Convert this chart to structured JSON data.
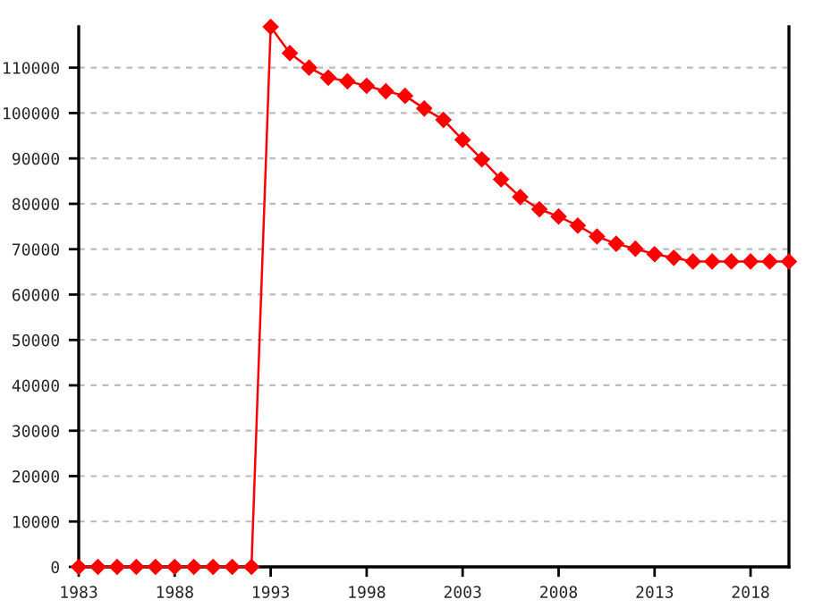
{
  "chart_data": {
    "type": "line",
    "x": [
      1983,
      1984,
      1985,
      1986,
      1987,
      1988,
      1989,
      1990,
      1991,
      1992,
      1993,
      1994,
      1995,
      1996,
      1997,
      1998,
      1999,
      2000,
      2001,
      2002,
      2003,
      2004,
      2005,
      2006,
      2007,
      2008,
      2009,
      2010,
      2011,
      2012,
      2013,
      2014,
      2015,
      2016,
      2017,
      2018,
      2019,
      2020
    ],
    "series": [
      {
        "color": "#ff0000",
        "values": [
          0,
          0,
          0,
          0,
          0,
          0,
          0,
          0,
          0,
          0,
          119000,
          113200,
          110000,
          107800,
          107000,
          106000,
          104800,
          103800,
          101000,
          98500,
          94100,
          89800,
          85400,
          81500,
          78800,
          77200,
          75200,
          72800,
          71200,
          70100,
          68900,
          68100,
          67300,
          67300,
          67300,
          67300,
          67300,
          67300
        ]
      }
    ],
    "xlim": [
      1983,
      2020
    ],
    "ylim": [
      0,
      119000
    ],
    "xticks": [
      1983,
      1988,
      1993,
      1998,
      2003,
      2008,
      2013,
      2018
    ],
    "yticks": [
      0,
      10000,
      20000,
      30000,
      40000,
      50000,
      60000,
      70000,
      80000,
      90000,
      100000,
      110000
    ],
    "grid": "y",
    "marker": "diamond",
    "line_style": "solid"
  }
}
